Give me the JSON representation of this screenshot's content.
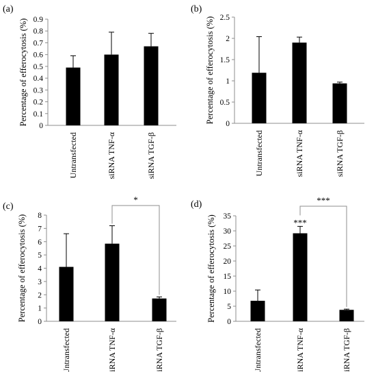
{
  "chart_data": [
    {
      "panel": "(a)",
      "type": "bar",
      "categories": [
        "Untransfected",
        "siRNA TNF-α",
        "siRNA TGF-β"
      ],
      "values": [
        0.49,
        0.6,
        0.67
      ],
      "errors": [
        0.1,
        0.19,
        0.11
      ],
      "ylabel": "Percentage of efferocytosis (%)",
      "ylim": [
        0,
        0.9
      ],
      "yticks": [
        "0",
        "0.1",
        "0.2",
        "0.3",
        "0.4",
        "0.5",
        "0.6",
        "0.7",
        "0.8",
        "0.9"
      ],
      "bracket": null,
      "star_over_bar": null
    },
    {
      "panel": "(b)",
      "type": "bar",
      "categories": [
        "Untransfected",
        "siRNA TNF-α",
        "siRNA TGF-β"
      ],
      "values": [
        1.19,
        1.9,
        0.94
      ],
      "errors": [
        0.85,
        0.13,
        0.03
      ],
      "ylabel": "Percentage of efferocytosis (%)",
      "ylim": [
        0,
        2.5
      ],
      "yticks": [
        "0",
        "0.5",
        "1",
        "1.5",
        "2",
        "2.5"
      ],
      "bracket": null,
      "star_over_bar": null
    },
    {
      "panel": "(c)",
      "type": "bar",
      "categories": [
        "Untransfected",
        "siRNA TNF-α",
        "siRNA TGF-β"
      ],
      "values": [
        4.1,
        5.85,
        1.72
      ],
      "errors": [
        2.5,
        1.35,
        0.12
      ],
      "ylabel": "Percentage of efferocytosis (%)",
      "ylim": [
        0,
        8
      ],
      "yticks": [
        "0",
        "1",
        "2",
        "3",
        "4",
        "5",
        "6",
        "7",
        "8"
      ],
      "bracket": {
        "from": 1,
        "to": 2,
        "label": "*"
      },
      "star_over_bar": null
    },
    {
      "panel": "(d)",
      "type": "bar",
      "categories": [
        "Untransfected",
        "siRNA TNF-α",
        "siRNA TGF-β"
      ],
      "values": [
        6.8,
        29.2,
        3.8
      ],
      "errors": [
        3.6,
        2.3,
        0.25
      ],
      "ylabel": "Percentage of efferocytosis (%)",
      "ylim": [
        0,
        35
      ],
      "yticks": [
        "0",
        "5",
        "10",
        "15",
        "20",
        "25",
        "30",
        "35"
      ],
      "bracket": {
        "from": 1,
        "to": 2,
        "label": "***"
      },
      "star_over_bar": {
        "index": 1,
        "label": "***"
      }
    }
  ],
  "colors": {
    "bar": "#000000",
    "axis": "#8c8c8c",
    "bracket": "#8c8c8c"
  }
}
